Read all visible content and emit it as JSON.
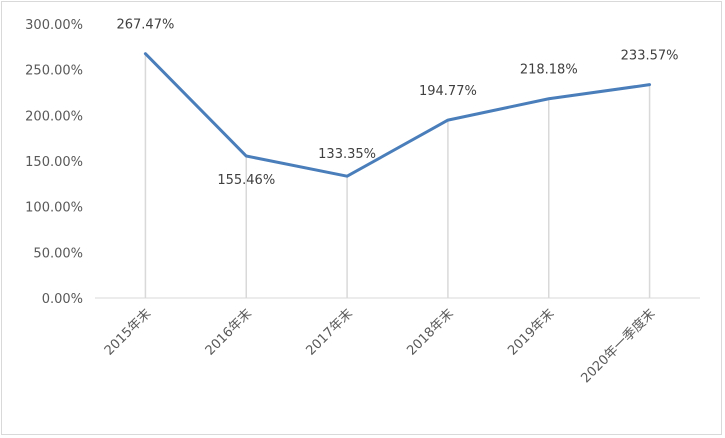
{
  "chart_data": {
    "type": "line",
    "title": "",
    "xlabel": "",
    "ylabel": "",
    "categories": [
      "2015年末",
      "2016年末",
      "2017年末",
      "2018年末",
      "2019年末",
      "2020年一季度末"
    ],
    "series": [
      {
        "values": [
          267.47,
          155.46,
          133.35,
          194.77,
          218.18,
          233.57
        ],
        "color": "#4a7ebb"
      }
    ],
    "data_labels": [
      "267.47%",
      "155.46%",
      "133.35%",
      "194.77%",
      "218.18%",
      "233.57%"
    ],
    "y_ticks": [
      "0.00%",
      "50.00%",
      "100.00%",
      "150.00%",
      "200.00%",
      "250.00%",
      "300.00%"
    ],
    "ylim": [
      0,
      300
    ],
    "grid": "vertical drop lines only",
    "legend": "none"
  }
}
